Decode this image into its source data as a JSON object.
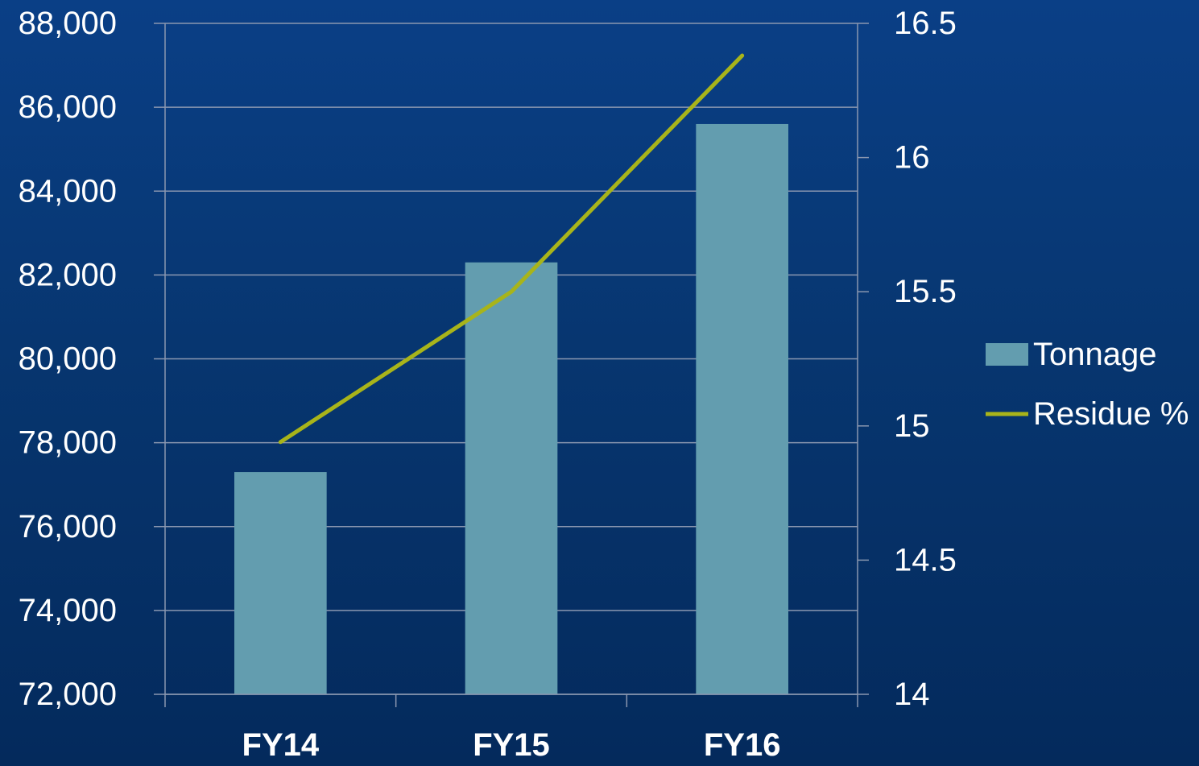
{
  "colors": {
    "bar": "#639daf",
    "line": "#a8b41a",
    "grid": "#8a97b0",
    "text": "#ffffff"
  },
  "chart_data": {
    "type": "bar",
    "categories": [
      "FY14",
      "FY15",
      "FY16"
    ],
    "series": [
      {
        "name": "Tonnage",
        "type": "bar",
        "axis": "left",
        "values": [
          77300,
          82300,
          85600
        ]
      },
      {
        "name": "Residue %",
        "type": "line",
        "axis": "right",
        "values": [
          14.94,
          15.5,
          16.38
        ]
      }
    ],
    "y_left": {
      "min": 72000,
      "max": 88000,
      "ticks": [
        "72,000",
        "74,000",
        "76,000",
        "78,000",
        "80,000",
        "82,000",
        "84,000",
        "86,000",
        "88,000"
      ],
      "tick_values": [
        72000,
        74000,
        76000,
        78000,
        80000,
        82000,
        84000,
        86000,
        88000
      ]
    },
    "y_right": {
      "min": 14,
      "max": 16.5,
      "ticks": [
        "14",
        "14.5",
        "15",
        "15.5",
        "16",
        "16.5"
      ],
      "tick_values": [
        14,
        14.5,
        15,
        15.5,
        16,
        16.5
      ]
    },
    "grid": true,
    "legend_position": "right"
  }
}
